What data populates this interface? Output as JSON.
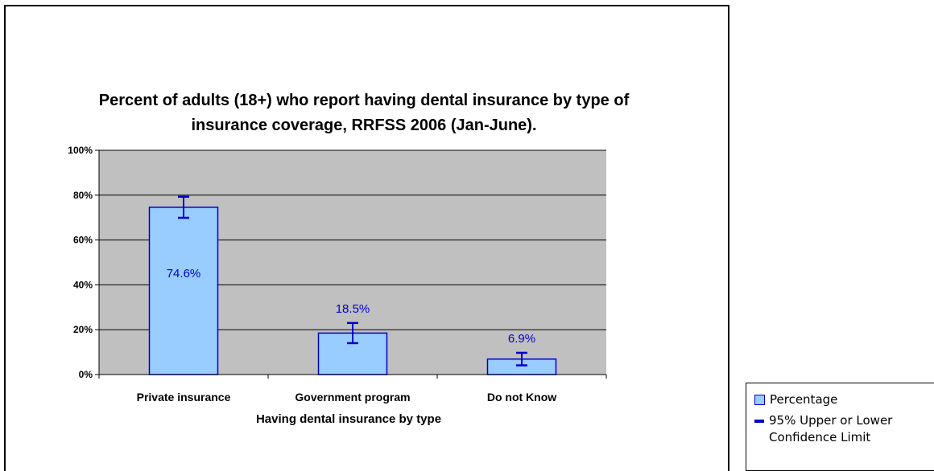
{
  "chart_data": {
    "type": "bar",
    "title": "Percent of adults (18+) who report having dental insurance by type of insurance coverage, RRFSS 2006 (Jan-June).",
    "xlabel": "Having dental insurance by type",
    "ylabel": "",
    "categories": [
      "Private insurance",
      "Government program",
      "Do not Know"
    ],
    "series": [
      {
        "name": "Percentage",
        "values": [
          74.6,
          18.5,
          6.9
        ],
        "data_labels": [
          "74.6%",
          "18.5%",
          "6.9%"
        ],
        "ci_upper": [
          79.3,
          23.0,
          9.7
        ],
        "ci_lower": [
          69.9,
          14.0,
          4.1
        ]
      }
    ],
    "ylim": [
      0,
      100
    ],
    "yticks": [
      0,
      20,
      40,
      60,
      80,
      100
    ],
    "ytick_labels": [
      "0%",
      "20%",
      "40%",
      "60%",
      "80%",
      "100%"
    ],
    "grid": true,
    "legend_position": "bottom-right",
    "legend": {
      "entries": [
        "Percentage",
        "95% Upper or Lower Confidence Limit"
      ]
    },
    "colors": {
      "bar_fill": "#99ccff",
      "bar_stroke": "#0000cc",
      "plot_background": "#c0c0c0",
      "error_bar": "#0000cc",
      "data_label": "#0000cc"
    }
  }
}
